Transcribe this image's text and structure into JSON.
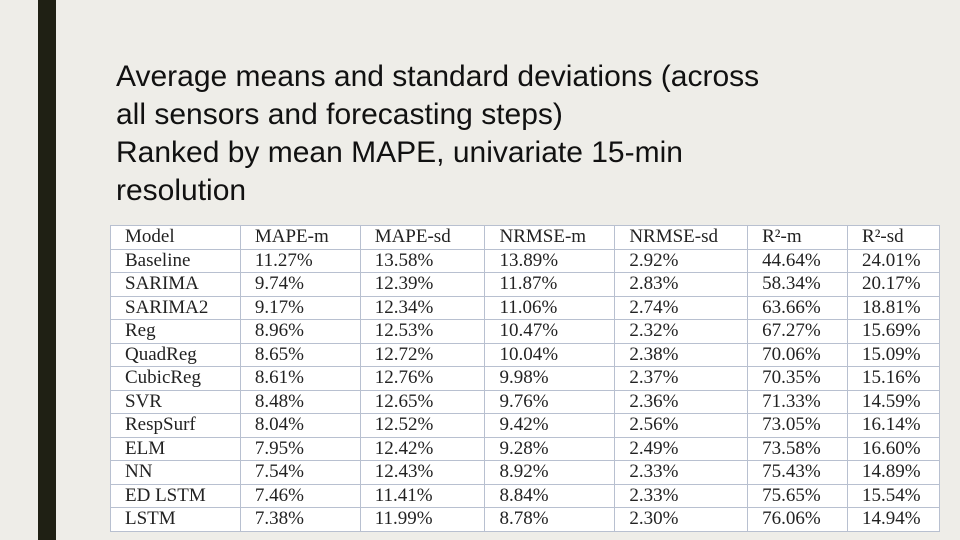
{
  "slide": {
    "title_lines": [
      "Average means and standard deviations (across",
      "all sensors and forecasting steps)",
      "Ranked by mean MAPE, univariate 15-min",
      "resolution"
    ]
  },
  "table": {
    "header": [
      "Model",
      "MAPE-m",
      "MAPE-sd",
      "NRMSE-m",
      "NRMSE-sd",
      "R²-m",
      "R²-sd"
    ],
    "rows": [
      [
        "Baseline",
        "11.27%",
        "13.58%",
        "13.89%",
        "2.92%",
        "44.64%",
        "24.01%"
      ],
      [
        "SARIMA",
        "9.74%",
        "12.39%",
        "11.87%",
        "2.83%",
        "58.34%",
        "20.17%"
      ],
      [
        "SARIMA2",
        "9.17%",
        "12.34%",
        "11.06%",
        "2.74%",
        "63.66%",
        "18.81%"
      ],
      [
        "Reg",
        "8.96%",
        "12.53%",
        "10.47%",
        "2.32%",
        "67.27%",
        "15.69%"
      ],
      [
        "QuadReg",
        "8.65%",
        "12.72%",
        "10.04%",
        "2.38%",
        "70.06%",
        "15.09%"
      ],
      [
        "CubicReg",
        "8.61%",
        "12.76%",
        "9.98%",
        "2.37%",
        "70.35%",
        "15.16%"
      ],
      [
        "SVR",
        "8.48%",
        "12.65%",
        "9.76%",
        "2.36%",
        "71.33%",
        "14.59%"
      ],
      [
        "RespSurf",
        "8.04%",
        "12.52%",
        "9.42%",
        "2.56%",
        "73.05%",
        "16.14%"
      ],
      [
        "ELM",
        "7.95%",
        "12.42%",
        "9.28%",
        "2.49%",
        "73.58%",
        "16.60%"
      ],
      [
        "NN",
        "7.54%",
        "12.43%",
        "8.92%",
        "2.33%",
        "75.43%",
        "14.89%"
      ],
      [
        "ED LSTM",
        "7.46%",
        "11.41%",
        "8.84%",
        "2.33%",
        "75.65%",
        "15.54%"
      ],
      [
        "LSTM",
        "7.38%",
        "11.99%",
        "8.78%",
        "2.30%",
        "76.06%",
        "14.94%"
      ]
    ]
  }
}
